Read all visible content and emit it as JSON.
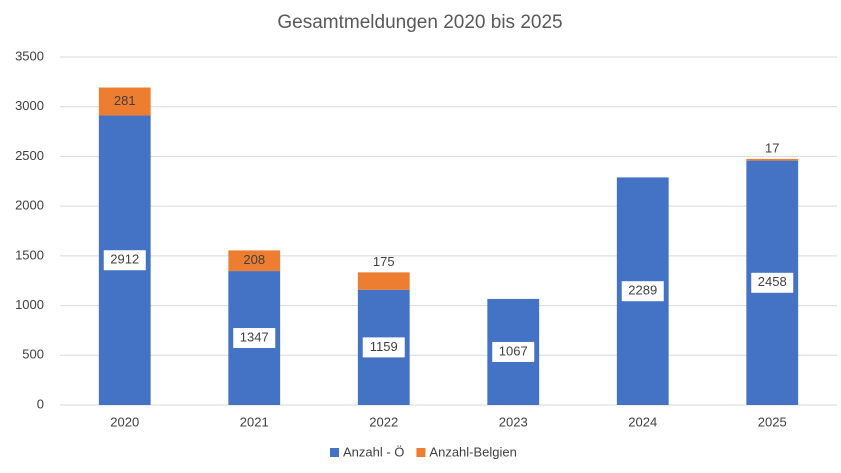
{
  "chart_data": {
    "type": "bar",
    "stacked": true,
    "title": "Gesamtmeldungen 2020 bis 2025",
    "categories": [
      "2020",
      "2021",
      "2022",
      "2023",
      "2024",
      "2025"
    ],
    "series": [
      {
        "name": "Anzahl - Ö",
        "color": "#4472c4",
        "values": [
          2912,
          1347,
          1159,
          1067,
          2289,
          2458
        ]
      },
      {
        "name": "Anzahl-Belgien",
        "color": "#ed7d31",
        "values": [
          281,
          208,
          175,
          null,
          null,
          17
        ]
      }
    ],
    "ylim": [
      0,
      3500
    ],
    "yticks": [
      0,
      500,
      1000,
      1500,
      2000,
      2500,
      3000,
      3500
    ],
    "grid": true,
    "legend": "bottom"
  }
}
